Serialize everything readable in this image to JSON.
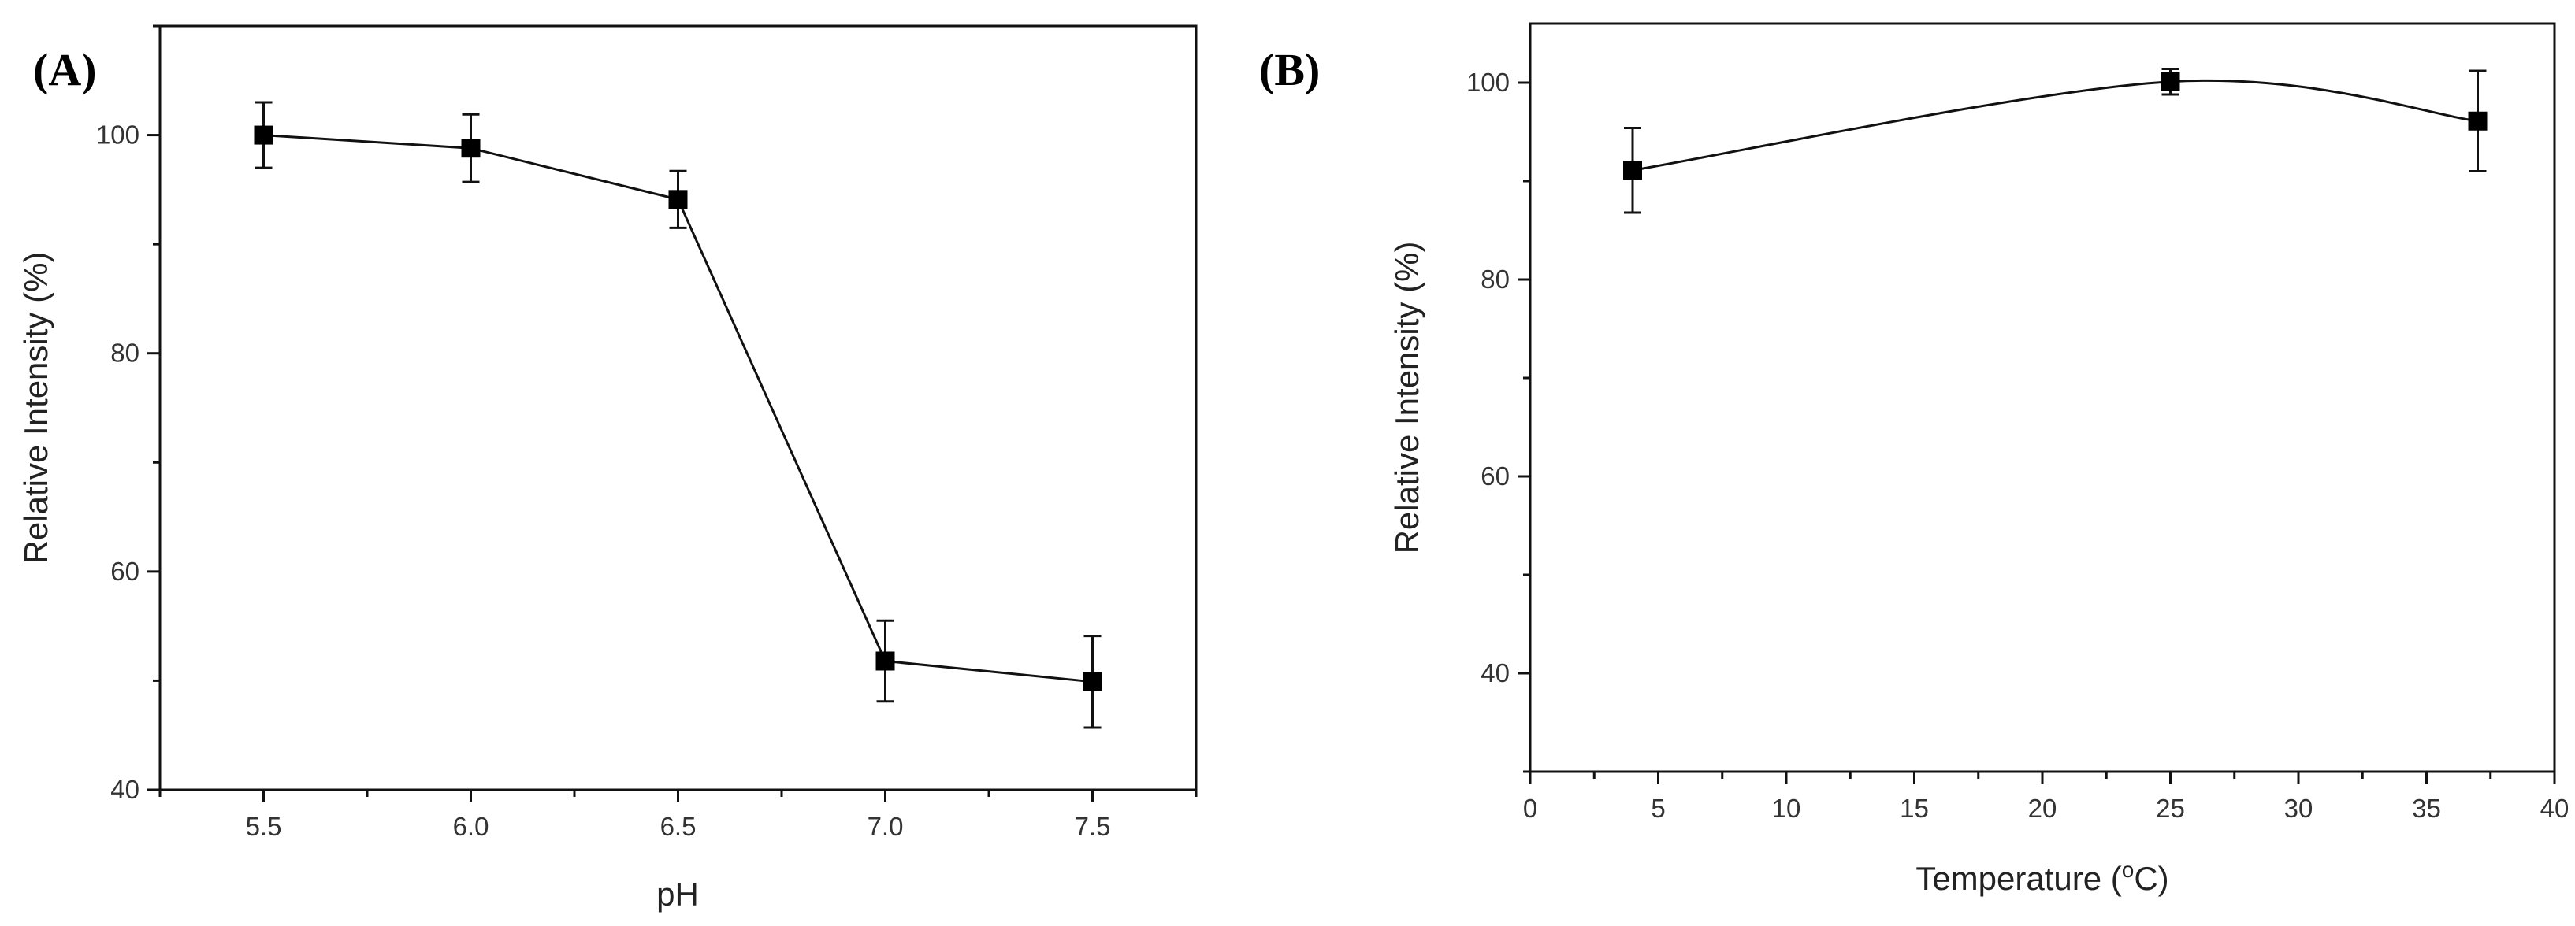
{
  "chart_data": [
    {
      "type": "line",
      "panel_label": "(A)",
      "xlabel": "pH",
      "ylabel": "Relative Intensity (%)",
      "xlim": [
        5.25,
        7.75
      ],
      "ylim": [
        40,
        110
      ],
      "xticks": [
        5.5,
        6.0,
        6.5,
        7.0,
        7.5
      ],
      "xtick_labels": [
        "5.5",
        "6.0",
        "6.5",
        "7.0",
        "7.5"
      ],
      "xminor": [
        5.25,
        5.75,
        6.25,
        6.75,
        7.25,
        7.75
      ],
      "yticks": [
        40,
        60,
        80,
        100
      ],
      "ytick_labels": [
        "40",
        "60",
        "80",
        "100"
      ],
      "yminor": [
        50,
        70,
        90,
        110
      ],
      "grid": false,
      "curve": "linear",
      "series": [
        {
          "name": "Relative Intensity",
          "x": [
            5.5,
            6.0,
            6.5,
            7.0,
            7.5
          ],
          "values": [
            100,
            98.8,
            94.1,
            51.8,
            49.9
          ],
          "errors": [
            3.0,
            3.1,
            2.6,
            3.7,
            4.2
          ]
        }
      ]
    },
    {
      "type": "line",
      "panel_label": "(B)",
      "xlabel": "Temperature (",
      "xlabel_sup": "o",
      "xlabel_tail": "C)",
      "ylabel": "Relative Intensity (%)",
      "xlim": [
        0,
        40
      ],
      "ylim": [
        30,
        106
      ],
      "xticks": [
        0,
        5,
        10,
        15,
        20,
        25,
        30,
        35,
        40
      ],
      "xtick_labels": [
        "0",
        "5",
        "10",
        "15",
        "20",
        "25",
        "30",
        "35",
        "40"
      ],
      "xminor": [
        2.5,
        7.5,
        12.5,
        17.5,
        22.5,
        27.5,
        32.5,
        37.5
      ],
      "yticks": [
        40,
        60,
        80,
        100
      ],
      "ytick_labels": [
        "40",
        "60",
        "80",
        "100"
      ],
      "yminor": [
        30,
        50,
        70,
        90
      ],
      "grid": false,
      "curve": "smooth",
      "series": [
        {
          "name": "Relative Intensity",
          "x": [
            4,
            25,
            37
          ],
          "values": [
            91.1,
            100.1,
            96.1
          ],
          "errors": [
            4.3,
            1.3,
            5.1
          ]
        }
      ]
    }
  ]
}
